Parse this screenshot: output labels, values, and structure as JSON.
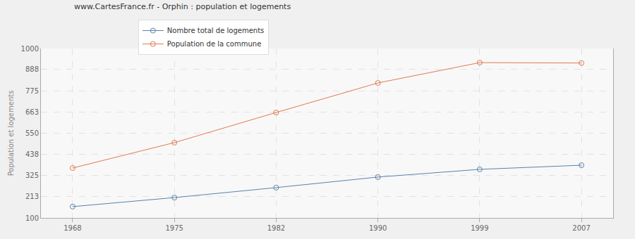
{
  "chart_data": {
    "type": "line",
    "title": "www.CartesFrance.fr - Orphin : population et logements",
    "y_label": "Population et logements",
    "categories": [
      "1968",
      "1975",
      "1982",
      "1990",
      "1999",
      "2007"
    ],
    "series": [
      {
        "name": "Nombre total de logements",
        "color": "#5b82a8",
        "values": [
          160,
          208,
          261,
          317,
          358,
          380
        ]
      },
      {
        "name": "Population de la commune",
        "color": "#e07a50",
        "values": [
          365,
          500,
          660,
          817,
          925,
          923
        ]
      }
    ],
    "ylim": [
      100,
      1000
    ],
    "yticks": [
      100,
      213,
      325,
      438,
      550,
      663,
      775,
      888,
      1000
    ],
    "grid": true,
    "legend": "top-left",
    "marker": "circle"
  }
}
